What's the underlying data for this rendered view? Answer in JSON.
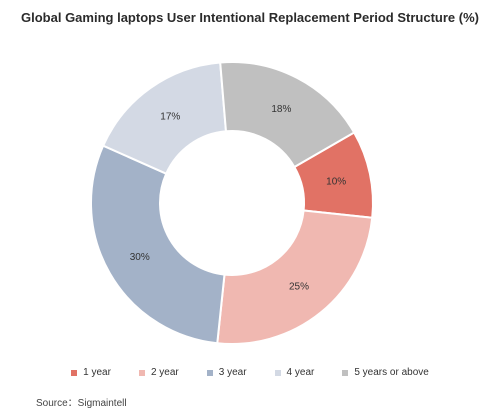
{
  "chart_data": {
    "type": "pie",
    "donut": true,
    "title": "Global Gaming laptops User Intentional Replacement Period Structure (%)",
    "categories": [
      "1 year",
      "2 year",
      "3 year",
      "4 year",
      "5 years or above"
    ],
    "values": [
      10,
      25,
      30,
      17,
      18
    ],
    "labels": [
      "10%",
      "25%",
      "30%",
      "17%",
      "18%"
    ],
    "colors": [
      "#e17265",
      "#f0b8b1",
      "#a3b2c8",
      "#d3d9e4",
      "#c0c0c0"
    ],
    "legend_position": "bottom",
    "start_angle_deg": 60
  },
  "source": "Source：Sigmaintell"
}
